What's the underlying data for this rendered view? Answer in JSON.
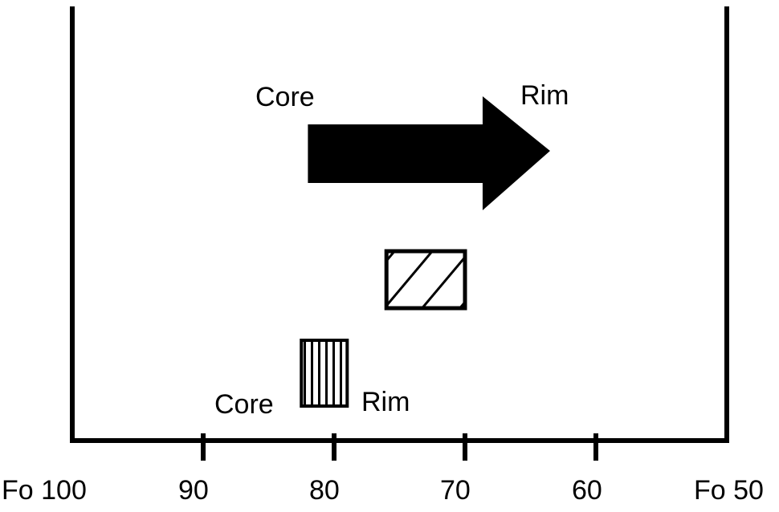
{
  "chart_data": {
    "type": "range-diagram",
    "title": "",
    "xlabel": "",
    "ylabel": "",
    "x_direction": "decreasing",
    "xlim": [
      100,
      50
    ],
    "x_ticks": [
      {
        "value": 100,
        "label": "Fo 100"
      },
      {
        "value": 90,
        "label": "90"
      },
      {
        "value": 80,
        "label": "80"
      },
      {
        "value": 70,
        "label": "70"
      },
      {
        "value": 60,
        "label": "60"
      },
      {
        "value": 50,
        "label": "Fo 50"
      }
    ],
    "grid": false,
    "legend": "none",
    "elements": [
      {
        "kind": "arrow",
        "fill": "solid",
        "color": "#000000",
        "x_start": 82,
        "x_end": 63.5,
        "start_label": "Core",
        "end_label": "Rim"
      },
      {
        "kind": "box",
        "fill": "diagonal-hatch",
        "color": "#000000",
        "x_start": 76,
        "x_end": 70
      },
      {
        "kind": "box",
        "fill": "vertical-hatch",
        "color": "#000000",
        "x_start": 82.5,
        "x_end": 79,
        "start_label": "Core",
        "end_label": "Rim"
      }
    ]
  }
}
